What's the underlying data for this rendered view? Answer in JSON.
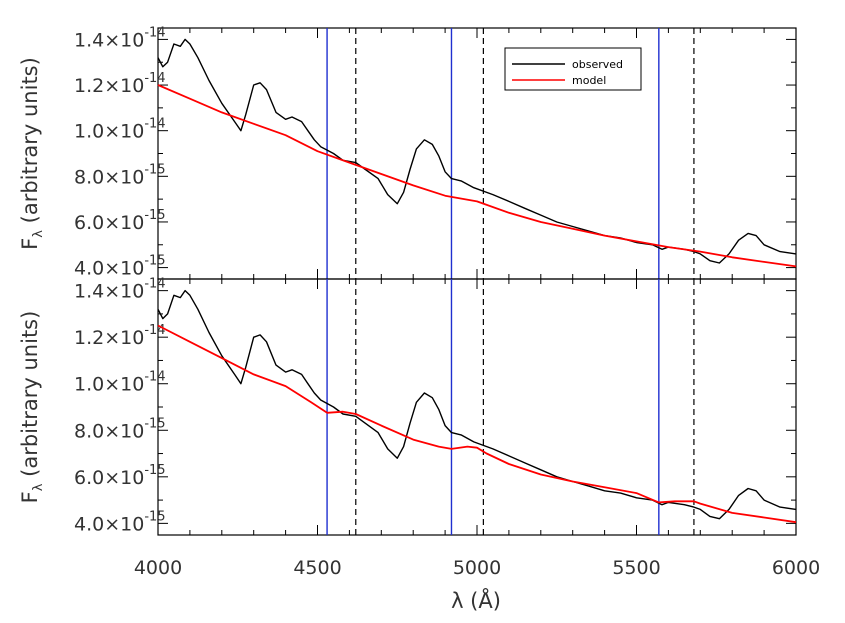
{
  "chart_data": {
    "type": "line",
    "xlabel": "λ (Å)",
    "x_ticks": [
      4000,
      4500,
      5000,
      5500,
      6000
    ],
    "xlim": [
      4000,
      6000
    ],
    "vertical_lines": {
      "blue_solid": [
        4530,
        4920,
        5570
      ],
      "black_dashed": [
        4620,
        5020,
        5680
      ]
    },
    "panels": [
      {
        "ylabel": "F_λ (arbitrary units)",
        "ylim": [
          3.5e-15,
          1.45e-14
        ],
        "y_ticks": [
          {
            "value": 4e-15,
            "mantissa": "4.0",
            "exp": "-15"
          },
          {
            "value": 6e-15,
            "mantissa": "6.0",
            "exp": "-15"
          },
          {
            "value": 8e-15,
            "mantissa": "8.0",
            "exp": "-15"
          },
          {
            "value": 1e-14,
            "mantissa": "1.0",
            "exp": "-14"
          },
          {
            "value": 1.2e-14,
            "mantissa": "1.2",
            "exp": "-14"
          },
          {
            "value": 1.4e-14,
            "mantissa": "1.4",
            "exp": "-14"
          }
        ],
        "legend": {
          "position": "top-right",
          "entries": [
            "observed",
            "model"
          ]
        },
        "series": [
          {
            "name": "observed",
            "color": "#000000",
            "x": [
              4000,
              4015,
              4030,
              4050,
              4070,
              4085,
              4100,
              4125,
              4160,
              4200,
              4240,
              4260,
              4275,
              4300,
              4320,
              4340,
              4370,
              4400,
              4420,
              4450,
              4470,
              4490,
              4510,
              4550,
              4580,
              4620,
              4650,
              4690,
              4720,
              4750,
              4770,
              4790,
              4810,
              4835,
              4860,
              4880,
              4900,
              4920,
              4950,
              4990,
              5050,
              5100,
              5150,
              5200,
              5250,
              5300,
              5350,
              5400,
              5450,
              5500,
              5550,
              5580,
              5600,
              5650,
              5680,
              5700,
              5730,
              5760,
              5790,
              5820,
              5850,
              5875,
              5900,
              5950,
              6000
            ],
            "y": [
              1.32e-14,
              1.28e-14,
              1.3e-14,
              1.38e-14,
              1.37e-14,
              1.4e-14,
              1.38e-14,
              1.32e-14,
              1.22e-14,
              1.12e-14,
              1.04e-14,
              1e-14,
              1.07e-14,
              1.2e-14,
              1.21e-14,
              1.18e-14,
              1.08e-14,
              1.05e-14,
              1.06e-14,
              1.04e-14,
              1e-14,
              9.6e-15,
              9.3e-15,
              9e-15,
              8.7e-15,
              8.6e-15,
              8.3e-15,
              7.9e-15,
              7.2e-15,
              6.8e-15,
              7.3e-15,
              8.3e-15,
              9.2e-15,
              9.6e-15,
              9.4e-15,
              8.9e-15,
              8.2e-15,
              7.9e-15,
              7.8e-15,
              7.5e-15,
              7.2e-15,
              6.9e-15,
              6.6e-15,
              6.3e-15,
              6e-15,
              5.8e-15,
              5.6e-15,
              5.4e-15,
              5.3e-15,
              5.1e-15,
              5e-15,
              4.8e-15,
              4.9e-15,
              4.8e-15,
              4.7e-15,
              4.6e-15,
              4.3e-15,
              4.2e-15,
              4.6e-15,
              5.2e-15,
              5.5e-15,
              5.4e-15,
              5e-15,
              4.7e-15,
              4.6e-15
            ]
          },
          {
            "name": "model",
            "color": "#ff0000",
            "x": [
              4000,
              4100,
              4200,
              4300,
              4400,
              4500,
              4600,
              4700,
              4800,
              4900,
              4960,
              5000,
              5100,
              5200,
              5300,
              5400,
              5500,
              5600,
              5700,
              5800,
              5900,
              6000
            ],
            "y": [
              1.2e-14,
              1.14e-14,
              1.08e-14,
              1.03e-14,
              9.8e-15,
              9.1e-15,
              8.6e-15,
              8.1e-15,
              7.6e-15,
              7.15e-15,
              7e-15,
              6.9e-15,
              6.4e-15,
              6e-15,
              5.7e-15,
              5.4e-15,
              5.15e-15,
              4.9e-15,
              4.7e-15,
              4.45e-15,
              4.25e-15,
              4.05e-15
            ]
          }
        ]
      },
      {
        "ylabel": "F_λ (arbitrary units)",
        "ylim": [
          3.5e-15,
          1.45e-14
        ],
        "y_ticks": [
          {
            "value": 4e-15,
            "mantissa": "4.0",
            "exp": "-15"
          },
          {
            "value": 6e-15,
            "mantissa": "6.0",
            "exp": "-15"
          },
          {
            "value": 8e-15,
            "mantissa": "8.0",
            "exp": "-15"
          },
          {
            "value": 1e-14,
            "mantissa": "1.0",
            "exp": "-14"
          },
          {
            "value": 1.2e-14,
            "mantissa": "1.2",
            "exp": "-14"
          },
          {
            "value": 1.4e-14,
            "mantissa": "1.4",
            "exp": "-14"
          }
        ],
        "series": [
          {
            "name": "observed",
            "color": "#000000",
            "x": [
              4000,
              4015,
              4030,
              4050,
              4070,
              4085,
              4100,
              4125,
              4160,
              4200,
              4240,
              4260,
              4275,
              4300,
              4320,
              4340,
              4370,
              4400,
              4420,
              4450,
              4470,
              4490,
              4510,
              4550,
              4580,
              4620,
              4650,
              4690,
              4720,
              4750,
              4770,
              4790,
              4810,
              4835,
              4860,
              4880,
              4900,
              4920,
              4950,
              4990,
              5050,
              5100,
              5150,
              5200,
              5250,
              5300,
              5350,
              5400,
              5450,
              5500,
              5550,
              5580,
              5600,
              5650,
              5680,
              5700,
              5730,
              5760,
              5790,
              5820,
              5850,
              5875,
              5900,
              5950,
              6000
            ],
            "y": [
              1.32e-14,
              1.28e-14,
              1.3e-14,
              1.38e-14,
              1.37e-14,
              1.4e-14,
              1.38e-14,
              1.32e-14,
              1.22e-14,
              1.12e-14,
              1.04e-14,
              1e-14,
              1.07e-14,
              1.2e-14,
              1.21e-14,
              1.18e-14,
              1.08e-14,
              1.05e-14,
              1.06e-14,
              1.04e-14,
              1e-14,
              9.6e-15,
              9.3e-15,
              9e-15,
              8.7e-15,
              8.6e-15,
              8.3e-15,
              7.9e-15,
              7.2e-15,
              6.8e-15,
              7.3e-15,
              8.3e-15,
              9.2e-15,
              9.6e-15,
              9.4e-15,
              8.9e-15,
              8.2e-15,
              7.9e-15,
              7.8e-15,
              7.5e-15,
              7.2e-15,
              6.9e-15,
              6.6e-15,
              6.3e-15,
              6e-15,
              5.8e-15,
              5.6e-15,
              5.4e-15,
              5.3e-15,
              5.1e-15,
              5e-15,
              4.8e-15,
              4.9e-15,
              4.8e-15,
              4.7e-15,
              4.6e-15,
              4.3e-15,
              4.2e-15,
              4.6e-15,
              5.2e-15,
              5.5e-15,
              5.4e-15,
              5e-15,
              4.7e-15,
              4.6e-15
            ]
          },
          {
            "name": "model",
            "color": "#ff0000",
            "x": [
              4000,
              4100,
              4200,
              4300,
              4400,
              4480,
              4530,
              4580,
              4620,
              4700,
              4800,
              4880,
              4920,
              4970,
              5000,
              5030,
              5100,
              5200,
              5300,
              5400,
              5500,
              5570,
              5620,
              5680,
              5700,
              5800,
              5900,
              6000
            ],
            "y": [
              1.25e-14,
              1.18e-14,
              1.11e-14,
              1.04e-14,
              9.9e-15,
              9.2e-15,
              8.75e-15,
              8.8e-15,
              8.7e-15,
              8.2e-15,
              7.6e-15,
              7.3e-15,
              7.2e-15,
              7.3e-15,
              7.25e-15,
              7e-15,
              6.55e-15,
              6.1e-15,
              5.8e-15,
              5.55e-15,
              5.3e-15,
              4.9e-15,
              4.95e-15,
              4.95e-15,
              4.85e-15,
              4.45e-15,
              4.25e-15,
              4.05e-15
            ]
          }
        ]
      }
    ]
  }
}
